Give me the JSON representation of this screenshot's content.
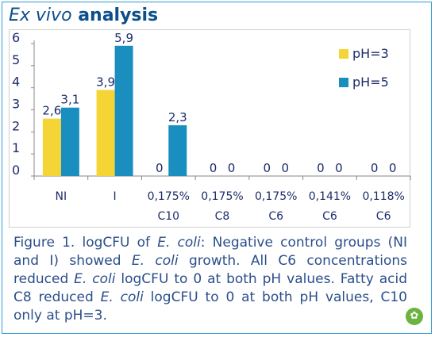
{
  "header": {
    "title_em": "Ex vivo",
    "title_rest": " analysis"
  },
  "chart_data": {
    "type": "bar",
    "categories": [
      [
        "NI"
      ],
      [
        "I"
      ],
      [
        "0,175%",
        "C10"
      ],
      [
        "0,175%",
        "C8"
      ],
      [
        "0,175%",
        "C6"
      ],
      [
        "0,141%",
        "C6"
      ],
      [
        "0,118%",
        "C6"
      ]
    ],
    "series": [
      {
        "name": "pH=3",
        "color": "#f5d535",
        "values": [
          2.6,
          3.9,
          0,
          0,
          0,
          0,
          0
        ],
        "labels": [
          "2,6",
          "3,9",
          "0",
          "0",
          "0",
          "0",
          "0"
        ]
      },
      {
        "name": "pH=5",
        "color": "#1a8fbf",
        "values": [
          3.1,
          5.9,
          2.3,
          0,
          0,
          0,
          0
        ],
        "labels": [
          "3,1",
          "5,9",
          "2,3",
          "0",
          "0",
          "0",
          "0"
        ]
      }
    ],
    "yticks": [
      0,
      1,
      2,
      3,
      4,
      5,
      6
    ],
    "ylim": [
      0,
      6
    ],
    "legend": "top-right",
    "grid": false
  },
  "caption": {
    "segments": [
      {
        "text": "Figure 1. logCFU of ",
        "italic": false
      },
      {
        "text": "E. coli",
        "italic": true
      },
      {
        "text": ": Negative control groups (NI and I) showed ",
        "italic": false
      },
      {
        "text": "E. coli",
        "italic": true
      },
      {
        "text": " growth. All C6 concentrations reduced ",
        "italic": false
      },
      {
        "text": "E. coli",
        "italic": true
      },
      {
        "text": " logCFU to 0 at both pH values. Fatty acid C8 reduced ",
        "italic": false
      },
      {
        "text": "E. coli",
        "italic": true
      },
      {
        "text": " logCFU to 0 at both pH values, C10 only at pH=3.",
        "italic": false
      }
    ]
  },
  "logo": {
    "icon": "leaf-icon",
    "color": "#6cb33f"
  }
}
